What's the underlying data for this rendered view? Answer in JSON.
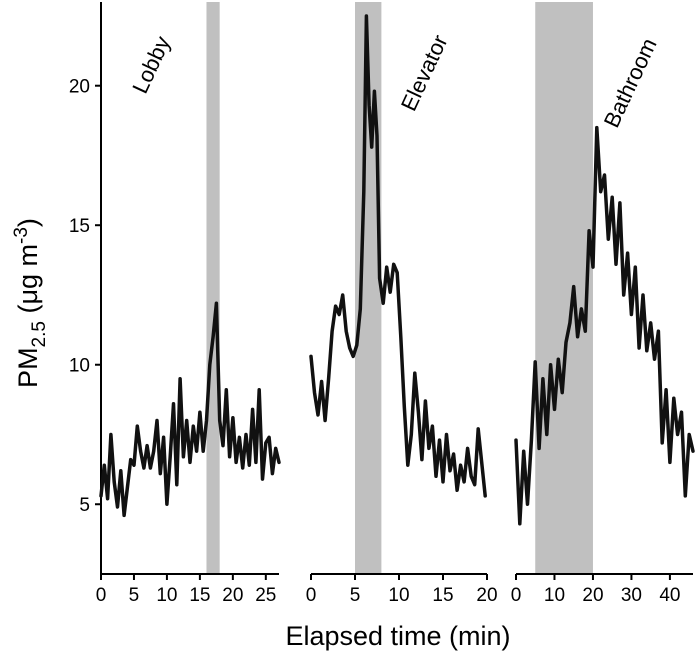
{
  "chart_data": {
    "type": "line",
    "ylabel": {
      "prefix": "PM",
      "subscript": "2.5",
      "unit_open": " (μg m",
      "superscript": "-3",
      "unit_close": ")"
    },
    "xlabel": "Elapsed time (min)",
    "ylim": [
      2.5,
      23
    ],
    "yticks": [
      5,
      10,
      15,
      20
    ],
    "grid": false,
    "shaded_color": "#c0c0c0",
    "line_color": "#111111",
    "panels": [
      {
        "label": "Lobby",
        "xlim": [
          0,
          27
        ],
        "xticks": [
          0,
          5,
          10,
          15,
          20,
          25
        ],
        "shaded": [
          16,
          18
        ],
        "series": [
          {
            "x": [
              0,
              0.5,
              1,
              1.5,
              2,
              2.5,
              3,
              3.5,
              4,
              4.5,
              5,
              5.5,
              6,
              6.5,
              7,
              7.5,
              8,
              8.5,
              9,
              9.5,
              10,
              10.5,
              11,
              11.5,
              12,
              12.5,
              13,
              13.5,
              14,
              14.5,
              15,
              15.5,
              16,
              16.5,
              17,
              17.5,
              18,
              18.5,
              19,
              19.5,
              20,
              20.5,
              21,
              21.5,
              22,
              22.5,
              23,
              23.5,
              24,
              24.5,
              25,
              25.5,
              26,
              26.5,
              27
            ],
            "y": [
              5.3,
              6.4,
              5.2,
              7.5,
              5.8,
              4.9,
              6.2,
              4.6,
              5.6,
              6.6,
              6.4,
              7.8,
              6.9,
              6.3,
              7.1,
              6.3,
              6.9,
              8.0,
              6.1,
              7.4,
              5.0,
              6.7,
              8.6,
              5.7,
              9.5,
              6.7,
              8.0,
              6.5,
              7.8,
              6.9,
              8.3,
              6.9,
              8.0,
              10.0,
              11.0,
              12.2,
              8.0,
              7.1,
              9.1,
              6.7,
              8.1,
              6.5,
              7.4,
              6.3,
              7.5,
              6.4,
              8.4,
              6.5,
              9.1,
              5.9,
              7.2,
              7.4,
              6.1,
              7.0,
              6.5
            ]
          }
        ]
      },
      {
        "label": "Elevator",
        "xlim": [
          0,
          20
        ],
        "xticks": [
          0,
          5,
          10,
          15,
          20
        ],
        "shaded": [
          5,
          8
        ],
        "series": [
          {
            "x": [
              0,
              0.4,
              0.8,
              1.2,
              1.6,
              2,
              2.4,
              2.8,
              3.2,
              3.6,
              4,
              4.4,
              4.8,
              5.2,
              5.6,
              6,
              6.3,
              6.6,
              6.9,
              7.2,
              7.5,
              7.8,
              8.2,
              8.6,
              9,
              9.4,
              9.8,
              10.2,
              10.6,
              11,
              11.4,
              11.8,
              12.2,
              12.6,
              13,
              13.4,
              13.8,
              14.2,
              14.6,
              15,
              15.4,
              15.8,
              16.2,
              16.6,
              17,
              17.4,
              17.8,
              18.2,
              18.6,
              19,
              19.4,
              19.8
            ],
            "y": [
              10.3,
              9.0,
              8.2,
              9.4,
              8.0,
              9.5,
              11.2,
              12.1,
              11.8,
              12.5,
              11.2,
              10.6,
              10.3,
              10.7,
              12.0,
              16.2,
              22.5,
              19.3,
              17.8,
              19.8,
              18.2,
              13.1,
              12.2,
              13.5,
              12.6,
              13.6,
              13.3,
              11.0,
              8.5,
              6.4,
              7.5,
              9.7,
              8.3,
              6.6,
              8.7,
              7.0,
              7.8,
              6.0,
              7.3,
              5.8,
              7.5,
              6.2,
              6.8,
              5.5,
              6.4,
              5.8,
              7.0,
              6.0,
              5.7,
              7.7,
              6.5,
              5.3
            ]
          }
        ]
      },
      {
        "label": "Bathroom",
        "xlim": [
          0,
          46
        ],
        "xticks": [
          0,
          10,
          20,
          30,
          40
        ],
        "shaded": [
          5,
          20
        ],
        "series": [
          {
            "x": [
              0,
              1,
              2,
              3,
              4,
              5,
              6,
              7,
              8,
              9,
              10,
              11,
              12,
              13,
              14,
              15,
              16,
              17,
              18,
              19,
              20,
              21,
              22,
              23,
              24,
              25,
              26,
              27,
              28,
              29,
              30,
              31,
              32,
              33,
              34,
              35,
              36,
              37,
              38,
              39,
              40,
              41,
              42,
              43,
              44,
              45,
              46
            ],
            "y": [
              7.3,
              4.3,
              6.9,
              5.0,
              7.3,
              10.1,
              7.0,
              9.5,
              7.5,
              10.0,
              8.4,
              10.2,
              9.0,
              10.8,
              11.5,
              12.8,
              11.0,
              12.0,
              11.2,
              14.8,
              13.5,
              18.5,
              16.2,
              16.8,
              14.5,
              16.0,
              13.6,
              15.8,
              12.5,
              14.0,
              11.8,
              13.5,
              10.6,
              12.5,
              10.5,
              11.5,
              10.2,
              11.2,
              7.2,
              9.1,
              6.5,
              8.8,
              7.5,
              8.3,
              5.3,
              7.5,
              6.9
            ]
          }
        ]
      }
    ]
  }
}
